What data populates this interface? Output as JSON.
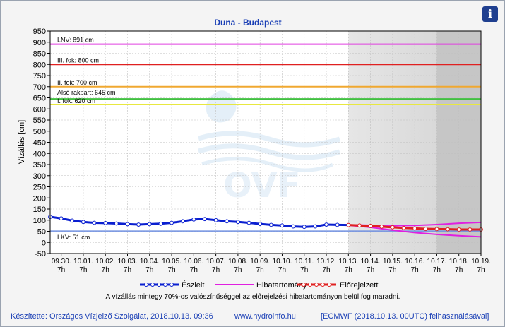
{
  "info_icon": "info-icon",
  "chart_data": {
    "type": "line",
    "title": "Duna - Budapest",
    "ylabel": "Vízállás [cm]",
    "ylim": [
      -50,
      950
    ],
    "yticks": [
      -50,
      0,
      50,
      100,
      150,
      200,
      250,
      300,
      350,
      400,
      450,
      500,
      550,
      600,
      650,
      700,
      750,
      800,
      850,
      900,
      950
    ],
    "x_range": [
      "2018-09-29 19:00",
      "2018-10-19 07:00"
    ],
    "xtick_dates": [
      "09.30.",
      "10.01.",
      "10.02.",
      "10.03.",
      "10.04.",
      "10.05.",
      "10.06.",
      "10.07.",
      "10.08.",
      "10.09.",
      "10.10.",
      "10.11.",
      "10.12.",
      "10.13.",
      "10.14.",
      "10.15.",
      "10.16.",
      "10.17.",
      "10.18.",
      "10.19."
    ],
    "xtick_hour": "7h",
    "forecast_region": [
      "10.13. 7h",
      "10.19. 7h"
    ],
    "uncertain_region": [
      "10.17. 7h",
      "10.19. 7h"
    ],
    "levels": [
      {
        "label": "LNV: 891 cm",
        "value": 891,
        "color": "#e040e0"
      },
      {
        "label": "III. fok: 800 cm",
        "value": 800,
        "color": "#e02020"
      },
      {
        "label": "II. fok: 700 cm",
        "value": 700,
        "color": "#f0a830"
      },
      {
        "label": "Alsó rakpart: 645 cm",
        "value": 645,
        "color": "#40c040"
      },
      {
        "label": "I. fok: 620 cm",
        "value": 620,
        "color": "#e8e840"
      },
      {
        "label": "LKV: 51 cm",
        "value": 51,
        "color": "#7090e0"
      }
    ],
    "series": [
      {
        "name": "Észlelt",
        "color": "#0a1fd0",
        "days_from_0930_7h": [
          -0.5,
          0,
          0.5,
          1,
          1.5,
          2,
          2.5,
          3,
          3.5,
          4,
          4.5,
          5,
          5.5,
          6,
          6.5,
          7,
          7.5,
          8,
          8.5,
          9,
          9.5,
          10,
          10.5,
          11,
          11.5,
          12,
          12.5,
          13
        ],
        "values": [
          115,
          108,
          98,
          92,
          88,
          87,
          85,
          82,
          80,
          82,
          84,
          88,
          95,
          103,
          105,
          100,
          95,
          92,
          88,
          83,
          79,
          76,
          72,
          70,
          72,
          80,
          79,
          78
        ]
      },
      {
        "name": "Hibatartomány",
        "color": "#e020e0",
        "days_from_0930_7h": [
          13,
          14,
          15,
          16,
          17,
          18,
          19
        ],
        "upper": [
          79,
          77,
          75,
          76,
          80,
          86,
          90
        ],
        "lower": [
          77,
          68,
          55,
          44,
          36,
          30,
          25
        ]
      },
      {
        "name": "Előrejelzett",
        "color": "#e02020",
        "days_from_0930_7h": [
          13,
          13.5,
          14,
          14.5,
          15,
          15.5,
          16,
          16.5,
          17,
          17.5,
          18,
          18.5,
          19
        ],
        "values": [
          78,
          76,
          74,
          71,
          68,
          65,
          63,
          61,
          60,
          59,
          58,
          58,
          58
        ]
      }
    ],
    "note": "A vízállás mintegy 70%-os valószínűséggel az előrejelzési hibatartományon belül fog maradni."
  },
  "footer": {
    "author": "Készítette: Országos Vízjelző Szolgálat, 2018.10.13. 09:36",
    "url": "www.hydroinfo.hu",
    "model": "[ECMWF (2018.10.13. 00UTC) felhasználásával]"
  }
}
